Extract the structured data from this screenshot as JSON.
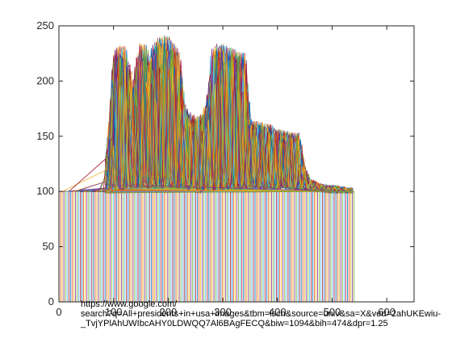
{
  "chart_data": {
    "type": "line",
    "title": "",
    "xlabel": "",
    "ylabel": "",
    "xlim": [
      0,
      650
    ],
    "ylim": [
      0,
      250
    ],
    "xticks": [
      0,
      100,
      200,
      300,
      400,
      500,
      600
    ],
    "yticks": [
      0,
      50,
      100,
      150,
      200,
      250
    ],
    "xtick_labels": [
      "0",
      "100",
      "200",
      "300",
      "400",
      "500",
      "600"
    ],
    "ytick_labels": [
      "0",
      "50",
      "100",
      "150",
      "200",
      "250"
    ],
    "grid": false,
    "legend": "none",
    "series_count_estimate": 180,
    "description_of_data": "Dense overlapping multi-color line traces. Each trace is a vertical line from 0 up to about 100 at an x between ~0 and ~540, then an irregular curve with a baseline around 100 and plateaus around 135–165 and peaks up to ~240, spanning roughly x=85 to x=540.",
    "envelope": {
      "x": [
        85,
        95,
        105,
        115,
        125,
        135,
        145,
        155,
        165,
        175,
        185,
        195,
        205,
        215,
        225,
        235,
        245,
        255,
        265,
        275,
        285,
        295,
        305,
        315,
        325,
        335,
        345,
        355,
        365,
        375,
        385,
        395,
        405,
        415,
        425,
        435,
        445,
        455,
        465,
        475,
        485,
        495,
        505,
        515,
        525,
        535
      ],
      "upper": [
        102,
        150,
        225,
        232,
        215,
        160,
        218,
        235,
        200,
        232,
        238,
        240,
        235,
        225,
        178,
        170,
        168,
        165,
        170,
        178,
        230,
        233,
        230,
        228,
        226,
        225,
        165,
        163,
        162,
        160,
        160,
        155,
        155,
        153,
        152,
        152,
        120,
        110,
        108,
        106,
        105,
        104,
        104,
        103,
        102,
        102
      ],
      "lower": [
        100,
        100,
        102,
        102,
        103,
        103,
        104,
        104,
        104,
        104,
        104,
        104,
        104,
        104,
        104,
        104,
        102,
        100,
        100,
        101,
        101,
        103,
        103,
        103,
        103,
        103,
        103,
        103,
        103,
        103,
        103,
        103,
        104,
        104,
        103,
        103,
        103,
        102,
        102,
        101,
        101,
        100,
        100,
        100,
        100,
        100
      ]
    },
    "vertical_drop_x_range": [
      0,
      540
    ],
    "color_cycle": [
      "#0072BD",
      "#D95319",
      "#EDB120",
      "#7E2F8E",
      "#77AC30",
      "#4DBEEE",
      "#A2142F"
    ]
  },
  "overlay_text": {
    "line1": "https://www.google.com/",
    "line2": "search?q=All+presidents+in+usa+images&tbm=isch&source=univ&sa=X&ved=2ahUKEwiu-",
    "line3": "_TvjYPlAhUWIbcAHY0LDWQQ7Al6BAgFECQ&biw=1094&bih=474&dpr=1.25"
  }
}
